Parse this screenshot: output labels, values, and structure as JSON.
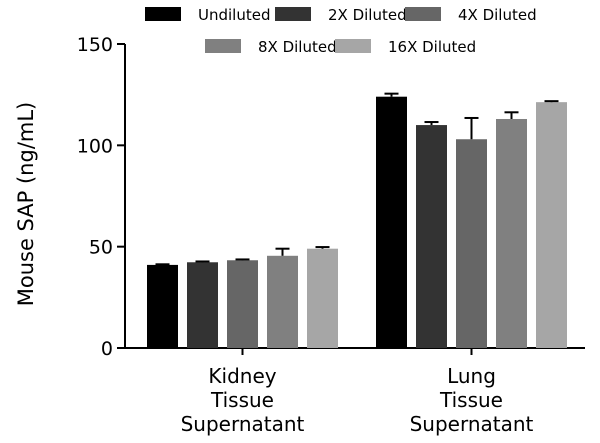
{
  "chart_data": {
    "type": "bar",
    "ylabel": "Mouse SAP (ng/mL)",
    "xlabel": "",
    "ylim": [
      0,
      150
    ],
    "yticks": [
      0,
      50,
      100,
      150
    ],
    "categories": [
      [
        "Kidney",
        "Tissue",
        "Supernatant"
      ],
      [
        "Lung",
        "Tissue",
        "Supernatant"
      ]
    ],
    "series": [
      {
        "name": "Undiluted",
        "color": "#000000",
        "values": [
          41,
          124
        ],
        "errors": [
          0.3,
          1.5
        ]
      },
      {
        "name": "2X Diluted",
        "color": "#333333",
        "values": [
          42.3,
          110
        ],
        "errors": [
          0.4,
          1.5
        ]
      },
      {
        "name": "4X Diluted",
        "color": "#666666",
        "values": [
          43.3,
          103
        ],
        "errors": [
          0.4,
          10.5
        ]
      },
      {
        "name": "8X Diluted",
        "color": "#808080",
        "values": [
          45.5,
          113
        ],
        "errors": [
          3.5,
          3.3
        ]
      },
      {
        "name": "16X Diluted",
        "color": "#a6a6a6",
        "values": [
          49,
          121.3
        ],
        "errors": [
          0.8,
          0.5
        ]
      }
    ],
    "legend_position": "top",
    "grid": false
  }
}
